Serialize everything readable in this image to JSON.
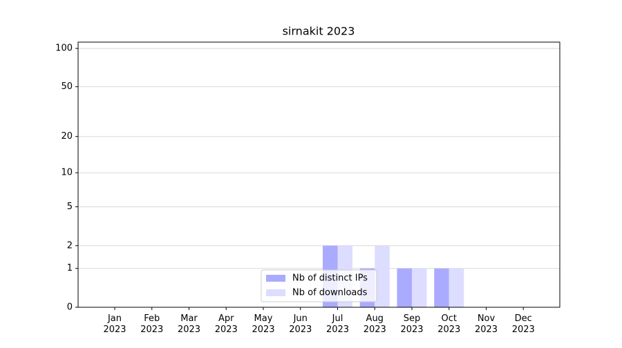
{
  "chart_data": {
    "type": "bar",
    "title": "sirnakit 2023",
    "categories": [
      "Jan 2023",
      "Feb 2023",
      "Mar 2023",
      "Apr 2023",
      "May 2023",
      "Jun 2023",
      "Jul 2023",
      "Aug 2023",
      "Sep 2023",
      "Oct 2023",
      "Nov 2023",
      "Dec 2023"
    ],
    "series": [
      {
        "name": "Nb of distinct IPs",
        "color": "#aaaaff",
        "values": [
          0,
          0,
          0,
          0,
          0,
          0,
          2,
          1,
          1,
          1,
          0,
          0
        ]
      },
      {
        "name": "Nb of downloads",
        "color": "#ddddff",
        "values": [
          0,
          0,
          0,
          0,
          0,
          0,
          2,
          2,
          1,
          1,
          0,
          0
        ]
      }
    ],
    "yscale": "log1p",
    "ylim": [
      0,
      112
    ],
    "yticks": [
      0,
      1,
      2,
      5,
      10,
      20,
      50,
      100
    ],
    "grid": true,
    "legend": "lower center"
  }
}
